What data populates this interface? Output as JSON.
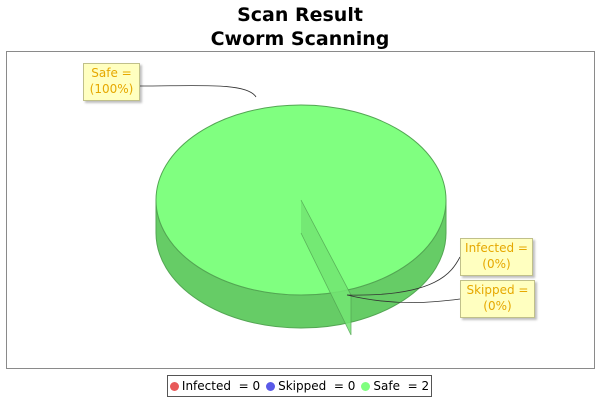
{
  "chart_data": {
    "type": "pie",
    "title": "Scan Result",
    "subtitle": "Cworm Scanning",
    "slices": [
      {
        "name": "Infected",
        "value": 0,
        "percent": "0%",
        "color": "#e85a5a",
        "label_line1": "Infected  =",
        "label_line2": "(0%)",
        "legend": "Infected  = 0"
      },
      {
        "name": "Skipped",
        "value": 0,
        "percent": "0%",
        "color": "#5a5ae8",
        "label_line1": "Skipped  =",
        "label_line2": "(0%)",
        "legend": "Skipped  = 0"
      },
      {
        "name": "Safe",
        "value": 2,
        "percent": "100%",
        "color": "#80ff80",
        "label_line1": "Safe  =",
        "label_line2": "(100%)",
        "legend": "Safe  = 2"
      }
    ],
    "legend_position": "bottom"
  }
}
